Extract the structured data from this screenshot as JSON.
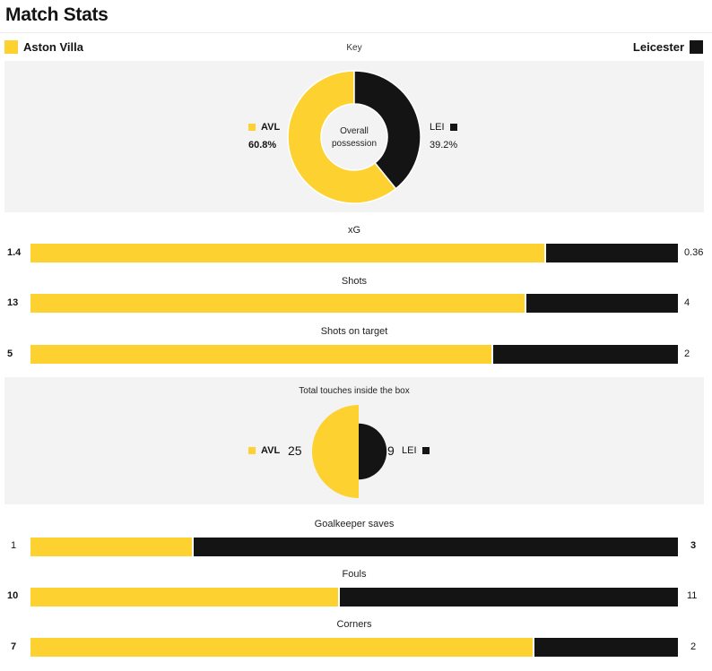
{
  "page_title": "Match Stats",
  "colors": {
    "home": "#fdd230",
    "away": "#141414",
    "panel": "#f3f3f3"
  },
  "teams": {
    "home": {
      "name": "Aston Villa",
      "abbr": "AVL"
    },
    "away": {
      "name": "Leicester",
      "abbr": "LEI"
    }
  },
  "key_label": "Key",
  "possession": {
    "center_line1": "Overall",
    "center_line2": "possession",
    "home_pct": "60.8%",
    "away_pct": "39.2%",
    "home_value": 60.8,
    "away_value": 39.2
  },
  "stats_top": [
    {
      "label": "xG",
      "home": "1.4",
      "away": "0.36",
      "home_value": 1.4,
      "away_value": 0.36
    },
    {
      "label": "Shots",
      "home": "13",
      "away": "4",
      "home_value": 13,
      "away_value": 4
    },
    {
      "label": "Shots on target",
      "home": "5",
      "away": "2",
      "home_value": 5,
      "away_value": 2
    }
  ],
  "touches": {
    "label": "Total touches inside the box",
    "home": "25",
    "away": "9",
    "home_value": 25,
    "away_value": 9
  },
  "stats_bottom": [
    {
      "label": "Goalkeeper saves",
      "home": "1",
      "away": "3",
      "home_value": 1,
      "away_value": 3
    },
    {
      "label": "Fouls",
      "home": "10",
      "away": "11",
      "home_value": 10,
      "away_value": 11
    },
    {
      "label": "Corners",
      "home": "7",
      "away": "2",
      "home_value": 7,
      "away_value": 2
    }
  ]
}
